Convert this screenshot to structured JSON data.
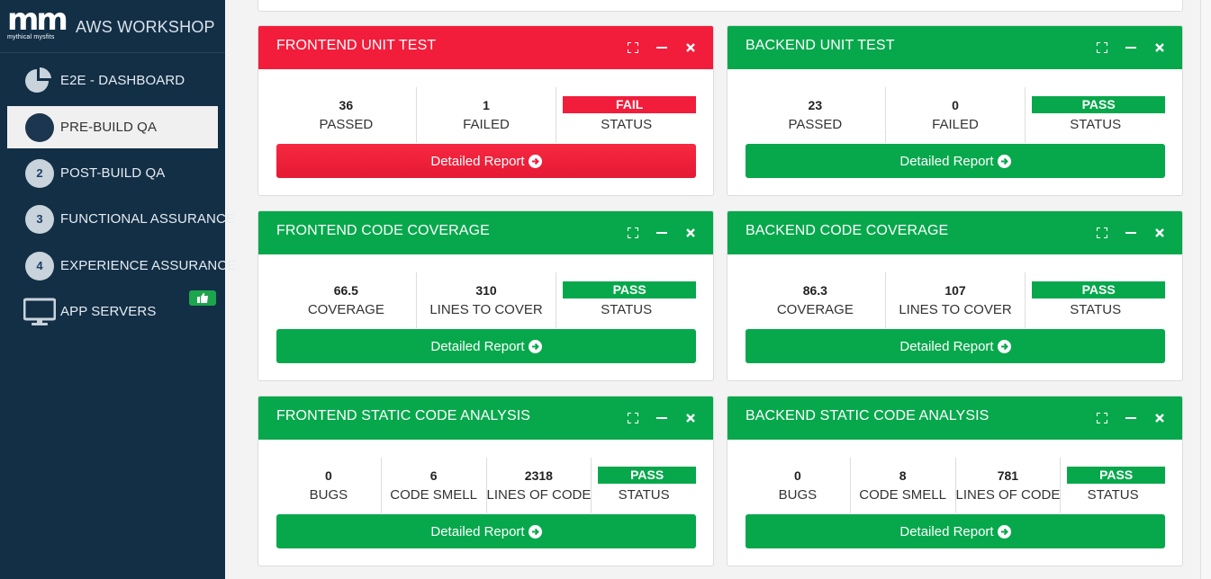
{
  "brand": {
    "logo_text": "mm",
    "logo_subtitle": "mythical mysfits",
    "app_title": "AWS WORKSHOP"
  },
  "sidebar": {
    "items": [
      {
        "label": "E2E - DASHBOARD",
        "icon": "pie-chart-icon",
        "active": false
      },
      {
        "label": "PRE-BUILD QA",
        "number": "1",
        "active": true
      },
      {
        "label": "POST-BUILD QA",
        "number": "2",
        "active": false
      },
      {
        "label": "FUNCTIONAL ASSURANCE",
        "number": "3",
        "active": false
      },
      {
        "label": "EXPERIENCE ASSURANCE",
        "number": "4",
        "active": false
      },
      {
        "label": "APP SERVERS",
        "icon": "monitor-icon",
        "badge_icon": "thumbs-up-icon",
        "active": false
      }
    ]
  },
  "colors": {
    "sidebar_bg": "#132f46",
    "fail": "#f21d3b",
    "pass": "#07a84c"
  },
  "panels": [
    {
      "title": "FRONTEND UNIT TEST",
      "state": "fail",
      "stats": [
        {
          "value": "36",
          "label": "PASSED"
        },
        {
          "value": "1",
          "label": "FAILED"
        }
      ],
      "status": {
        "value": "FAIL",
        "label": "STATUS"
      },
      "button": "Detailed Report"
    },
    {
      "title": "BACKEND UNIT TEST",
      "state": "pass",
      "stats": [
        {
          "value": "23",
          "label": "PASSED"
        },
        {
          "value": "0",
          "label": "FAILED"
        }
      ],
      "status": {
        "value": "PASS",
        "label": "STATUS"
      },
      "button": "Detailed Report"
    },
    {
      "title": "FRONTEND CODE COVERAGE",
      "state": "pass",
      "stats": [
        {
          "value": "66.5",
          "label": "COVERAGE"
        },
        {
          "value": "310",
          "label": "LINES TO COVER"
        }
      ],
      "status": {
        "value": "PASS",
        "label": "STATUS"
      },
      "button": "Detailed Report"
    },
    {
      "title": "BACKEND CODE COVERAGE",
      "state": "pass",
      "stats": [
        {
          "value": "86.3",
          "label": "COVERAGE"
        },
        {
          "value": "107",
          "label": "LINES TO COVER"
        }
      ],
      "status": {
        "value": "PASS",
        "label": "STATUS"
      },
      "button": "Detailed Report"
    },
    {
      "title": "FRONTEND STATIC CODE ANALYSIS",
      "state": "pass",
      "stats": [
        {
          "value": "0",
          "label": "BUGS"
        },
        {
          "value": "6",
          "label": "CODE SMELL"
        },
        {
          "value": "2318",
          "label": "LINES OF CODE"
        }
      ],
      "status": {
        "value": "PASS",
        "label": "STATUS"
      },
      "button": "Detailed Report"
    },
    {
      "title": "BACKEND STATIC CODE ANALYSIS",
      "state": "pass",
      "stats": [
        {
          "value": "0",
          "label": "BUGS"
        },
        {
          "value": "8",
          "label": "CODE SMELL"
        },
        {
          "value": "781",
          "label": "LINES OF CODE"
        }
      ],
      "status": {
        "value": "PASS",
        "label": "STATUS"
      },
      "button": "Detailed Report"
    }
  ]
}
